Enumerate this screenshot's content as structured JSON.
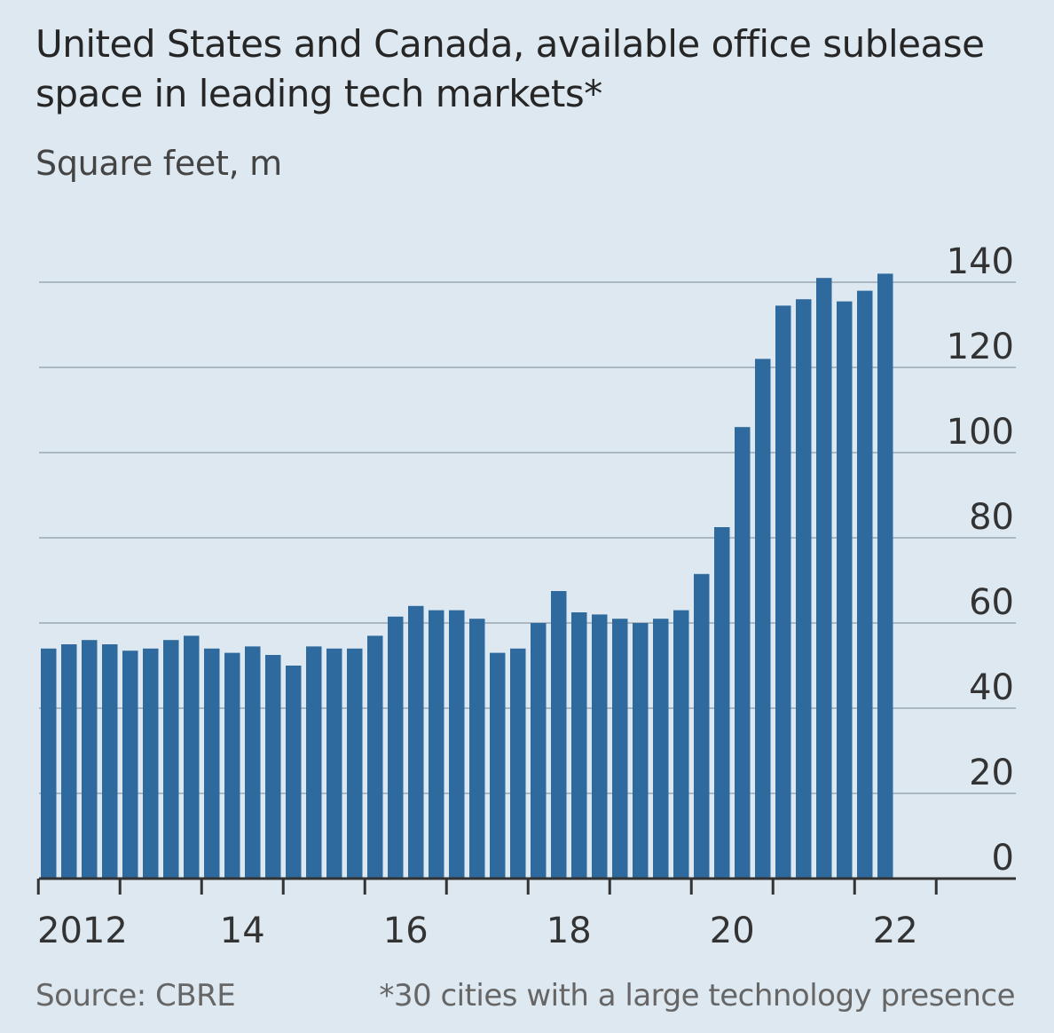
{
  "header": {
    "title": "United States and Canada, available office sublease space in leading tech markets*",
    "subtitle": "Square feet, m"
  },
  "footer": {
    "source": "Source: CBRE",
    "note": "*30 cities with a large technology presence"
  },
  "colors": {
    "background": "#dde8f0",
    "bar": "#2e6a9e",
    "grid": "#aab8c4",
    "axis": "#333333"
  },
  "chart_data": {
    "type": "bar",
    "title": "United States and Canada, available office sublease space in leading tech markets*",
    "ylabel": "Square feet, m",
    "xlabel": "",
    "ylim": [
      0,
      140
    ],
    "yticks": [
      "140",
      "120",
      "100",
      "80",
      "60",
      "40",
      "20",
      "0"
    ],
    "ytick_values": [
      140,
      120,
      100,
      80,
      60,
      40,
      20,
      0
    ],
    "x_tick_labels": [
      "2012",
      "14",
      "16",
      "18",
      "20",
      "22"
    ],
    "x_tick_years": [
      2012,
      2014,
      2016,
      2018,
      2020,
      2022
    ],
    "x_start": "2012 Q1",
    "frequency": "quarterly",
    "categories": [
      "2012 Q1",
      "2012 Q2",
      "2012 Q3",
      "2012 Q4",
      "2013 Q1",
      "2013 Q2",
      "2013 Q3",
      "2013 Q4",
      "2014 Q1",
      "2014 Q2",
      "2014 Q3",
      "2014 Q4",
      "2015 Q1",
      "2015 Q2",
      "2015 Q3",
      "2015 Q4",
      "2016 Q1",
      "2016 Q2",
      "2016 Q3",
      "2016 Q4",
      "2017 Q1",
      "2017 Q2",
      "2017 Q3",
      "2017 Q4",
      "2018 Q1",
      "2018 Q2",
      "2018 Q3",
      "2018 Q4",
      "2019 Q1",
      "2019 Q2",
      "2019 Q3",
      "2019 Q4",
      "2020 Q1",
      "2020 Q2",
      "2020 Q3",
      "2020 Q4",
      "2021 Q1",
      "2021 Q2",
      "2021 Q3",
      "2021 Q4",
      "2022 Q1",
      "2022 Q2"
    ],
    "values": [
      54,
      55,
      56,
      55,
      53.5,
      54,
      56,
      57,
      54,
      53,
      54.5,
      52.5,
      50,
      54.5,
      54,
      54,
      57,
      61.5,
      64,
      63,
      63,
      61,
      53,
      54,
      60,
      67.5,
      62.5,
      62,
      61,
      60,
      61,
      63,
      71.5,
      82.5,
      106,
      122,
      134.5,
      136,
      141,
      135.5,
      138,
      142
    ]
  }
}
